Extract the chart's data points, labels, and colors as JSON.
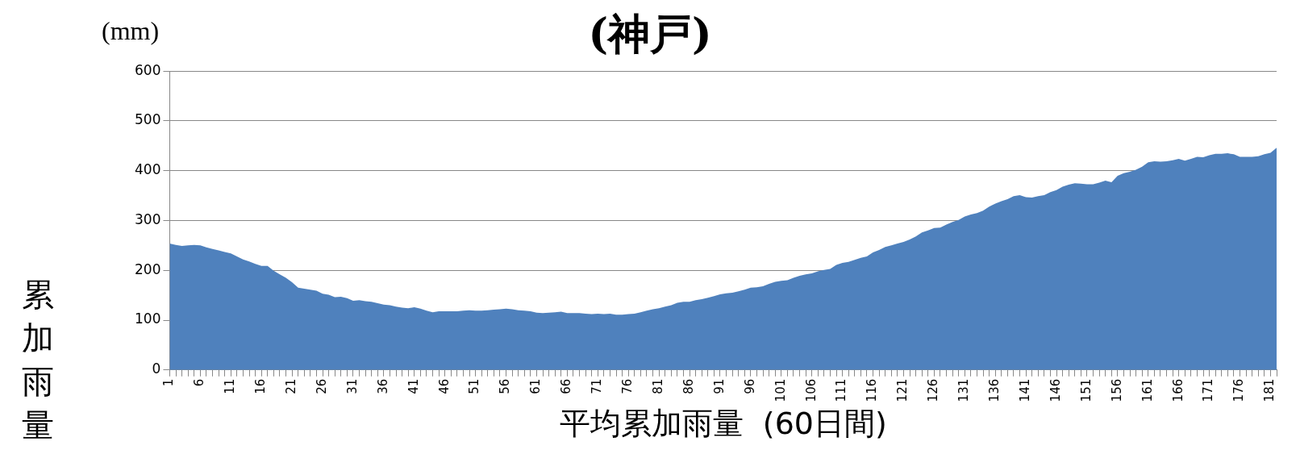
{
  "chart_data": {
    "type": "area",
    "title": "(神戸)",
    "xlabel": "平均累加雨量  (60日間)",
    "ylabel": "累加雨量",
    "annotations": [
      "(mm)"
    ],
    "categories": [
      "1",
      null,
      null,
      null,
      null,
      "6",
      null,
      null,
      null,
      null,
      "11",
      null,
      null,
      null,
      null,
      "16",
      null,
      null,
      null,
      null,
      "21",
      null,
      null,
      null,
      null,
      "26",
      null,
      null,
      null,
      null,
      "31",
      null,
      null,
      null,
      null,
      "36",
      null,
      null,
      null,
      null,
      "41",
      null,
      null,
      null,
      null,
      "46",
      null,
      null,
      null,
      null,
      "51",
      null,
      null,
      null,
      null,
      "56",
      null,
      null,
      null,
      null,
      "61",
      null,
      null,
      null,
      null,
      "66",
      null,
      null,
      null,
      null,
      "71",
      null,
      null,
      null,
      null,
      "76",
      null,
      null,
      null,
      null,
      "81",
      null,
      null,
      null,
      null,
      "86",
      null,
      null,
      null,
      null,
      "91",
      null,
      null,
      null,
      null,
      "96",
      null,
      null,
      null,
      null,
      "101",
      null,
      null,
      null,
      null,
      "106",
      null,
      null,
      null,
      null,
      "111",
      null,
      null,
      null,
      null,
      "116",
      null,
      null,
      null,
      null,
      "121",
      null,
      null,
      null,
      null,
      "126",
      null,
      null,
      null,
      null,
      "131",
      null,
      null,
      null,
      null,
      "136",
      null,
      null,
      null,
      null,
      "141",
      null,
      null,
      null,
      null,
      "146",
      null,
      null,
      null,
      null,
      "151",
      null,
      null,
      null,
      null,
      "156",
      null,
      null,
      null,
      null,
      "161",
      null,
      null,
      null,
      null,
      "166",
      null,
      null,
      null,
      null,
      "171",
      null,
      null,
      null,
      null,
      "176",
      null,
      null,
      null,
      null,
      "181",
      null
    ],
    "series": [
      {
        "color": "#4f81bd",
        "values": [
          254,
          251,
          249,
          250,
          251,
          250,
          246,
          243,
          240,
          237,
          234,
          228,
          222,
          218,
          213,
          209,
          209,
          199,
          192,
          185,
          176,
          165,
          163,
          161,
          159,
          153,
          151,
          146,
          147,
          144,
          139,
          140,
          138,
          137,
          134,
          131,
          130,
          127,
          125,
          124,
          126,
          123,
          119,
          116,
          118,
          118,
          118,
          118,
          119,
          120,
          119,
          119,
          120,
          121,
          122,
          123,
          122,
          120,
          119,
          118,
          115,
          114,
          115,
          116,
          117,
          114,
          114,
          114,
          113,
          112,
          113,
          112,
          113,
          111,
          111,
          112,
          113,
          116,
          119,
          122,
          124,
          127,
          130,
          135,
          137,
          137,
          140,
          142,
          145,
          148,
          152,
          154,
          155,
          158,
          161,
          165,
          166,
          168,
          173,
          177,
          179,
          180,
          185,
          189,
          192,
          194,
          198,
          201,
          203,
          211,
          215,
          217,
          221,
          225,
          228,
          236,
          241,
          247,
          250,
          254,
          257,
          262,
          268,
          276,
          280,
          285,
          286,
          292,
          297,
          301,
          308,
          312,
          315,
          320,
          328,
          334,
          339,
          343,
          349,
          351,
          347,
          346,
          349,
          351,
          357,
          361,
          368,
          372,
          375,
          374,
          373,
          373,
          376,
          380,
          377,
          390,
          395,
          398,
          402,
          408,
          417,
          419,
          418,
          419,
          421,
          424,
          420,
          424,
          428,
          427,
          431,
          434,
          434,
          435,
          433,
          428,
          428,
          428,
          429,
          433,
          436,
          446
        ]
      }
    ],
    "ylim": [
      0,
      600
    ],
    "yticks": [
      0,
      100,
      200,
      300,
      400,
      500,
      600
    ],
    "grid": "y",
    "legend": false
  }
}
